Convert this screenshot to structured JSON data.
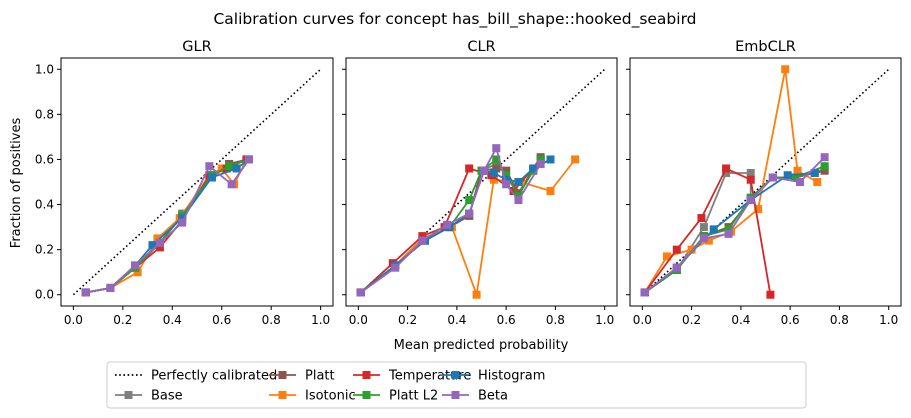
{
  "figure": {
    "suptitle": "Calibration curves for concept has_bill_shape::hooked_seabird",
    "shared_xlabel": "Mean predicted probability",
    "shared_ylabel": "Fraction of positives"
  },
  "legend": {
    "location": "bottom-center",
    "entries": [
      {
        "name": "Perfectly calibrated",
        "color": "#000000",
        "style": "dotted",
        "marker": "none"
      },
      {
        "name": "Base",
        "color": "#7f7f7f",
        "style": "solid",
        "marker": "square"
      },
      {
        "name": "Platt",
        "color": "#8c564b",
        "style": "solid",
        "marker": "square"
      },
      {
        "name": "Isotonic",
        "color": "#ff7f0e",
        "style": "solid",
        "marker": "square"
      },
      {
        "name": "Temperature",
        "color": "#d62728",
        "style": "solid",
        "marker": "square"
      },
      {
        "name": "Platt L2",
        "color": "#2ca02c",
        "style": "solid",
        "marker": "square"
      },
      {
        "name": "Histogram",
        "color": "#1f77b4",
        "style": "solid",
        "marker": "square"
      },
      {
        "name": "Beta",
        "color": "#9467bd",
        "style": "solid",
        "marker": "square"
      }
    ]
  },
  "chart_data": [
    {
      "type": "line",
      "title": "GLR",
      "xlabel": "",
      "ylabel": "Fraction of positives",
      "xlim": [
        -0.05,
        1.05
      ],
      "ylim": [
        -0.05,
        1.05
      ],
      "xticks": [
        "0.0",
        "0.2",
        "0.4",
        "0.6",
        "0.8",
        "1.0"
      ],
      "yticks": [
        "0.0",
        "0.2",
        "0.4",
        "0.6",
        "0.8",
        "1.0"
      ],
      "series": [
        {
          "name": "Perfectly calibrated",
          "points": [
            [
              0,
              0
            ],
            [
              1,
              1
            ]
          ]
        },
        {
          "name": "Base",
          "points": [
            [
              0.05,
              0.01
            ],
            [
              0.15,
              0.03
            ],
            [
              0.25,
              0.12
            ],
            [
              0.35,
              0.23
            ],
            [
              0.44,
              0.36
            ],
            [
              0.56,
              0.52
            ],
            [
              0.63,
              0.58
            ],
            [
              0.7,
              0.6
            ]
          ]
        },
        {
          "name": "Platt",
          "points": [
            [
              0.05,
              0.01
            ],
            [
              0.15,
              0.03
            ],
            [
              0.25,
              0.12
            ],
            [
              0.35,
              0.23
            ],
            [
              0.44,
              0.35
            ],
            [
              0.56,
              0.53
            ],
            [
              0.63,
              0.58
            ],
            [
              0.71,
              0.6
            ]
          ]
        },
        {
          "name": "Isotonic",
          "points": [
            [
              0.05,
              0.01
            ],
            [
              0.15,
              0.03
            ],
            [
              0.26,
              0.1
            ],
            [
              0.34,
              0.25
            ],
            [
              0.43,
              0.34
            ],
            [
              0.55,
              0.53
            ],
            [
              0.6,
              0.56
            ],
            [
              0.65,
              0.49
            ],
            [
              0.7,
              0.6
            ]
          ]
        },
        {
          "name": "Temperature",
          "points": [
            [
              0.05,
              0.01
            ],
            [
              0.15,
              0.03
            ],
            [
              0.25,
              0.12
            ],
            [
              0.35,
              0.21
            ],
            [
              0.44,
              0.33
            ],
            [
              0.55,
              0.53
            ],
            [
              0.62,
              0.56
            ],
            [
              0.7,
              0.6
            ]
          ]
        },
        {
          "name": "Platt L2",
          "points": [
            [
              0.05,
              0.01
            ],
            [
              0.15,
              0.03
            ],
            [
              0.25,
              0.12
            ],
            [
              0.35,
              0.23
            ],
            [
              0.44,
              0.35
            ],
            [
              0.56,
              0.53
            ],
            [
              0.63,
              0.57
            ],
            [
              0.71,
              0.6
            ]
          ]
        },
        {
          "name": "Histogram",
          "points": [
            [
              0.05,
              0.01
            ],
            [
              0.15,
              0.03
            ],
            [
              0.25,
              0.13
            ],
            [
              0.32,
              0.22
            ],
            [
              0.44,
              0.34
            ],
            [
              0.56,
              0.52
            ],
            [
              0.66,
              0.56
            ],
            [
              0.71,
              0.6
            ]
          ]
        },
        {
          "name": "Beta",
          "points": [
            [
              0.05,
              0.01
            ],
            [
              0.15,
              0.03
            ],
            [
              0.25,
              0.13
            ],
            [
              0.35,
              0.23
            ],
            [
              0.44,
              0.32
            ],
            [
              0.55,
              0.57
            ],
            [
              0.64,
              0.49
            ],
            [
              0.71,
              0.6
            ]
          ]
        }
      ]
    },
    {
      "type": "line",
      "title": "CLR",
      "xlabel": "Mean predicted probability",
      "ylabel": "",
      "xlim": [
        -0.05,
        1.05
      ],
      "ylim": [
        -0.05,
        1.05
      ],
      "xticks": [
        "0.0",
        "0.2",
        "0.4",
        "0.6",
        "0.8",
        "1.0"
      ],
      "yticks": [],
      "series": [
        {
          "name": "Perfectly calibrated",
          "points": [
            [
              0,
              0
            ],
            [
              1,
              1
            ]
          ]
        },
        {
          "name": "Base",
          "points": [
            [
              0.01,
              0.01
            ],
            [
              0.15,
              0.13
            ],
            [
              0.27,
              0.24
            ],
            [
              0.37,
              0.3
            ],
            [
              0.45,
              0.35
            ],
            [
              0.5,
              0.55
            ],
            [
              0.56,
              0.58
            ],
            [
              0.6,
              0.55
            ],
            [
              0.65,
              0.45
            ],
            [
              0.71,
              0.55
            ],
            [
              0.74,
              0.6
            ]
          ]
        },
        {
          "name": "Platt",
          "points": [
            [
              0.01,
              0.01
            ],
            [
              0.15,
              0.13
            ],
            [
              0.27,
              0.24
            ],
            [
              0.37,
              0.3
            ],
            [
              0.45,
              0.35
            ],
            [
              0.5,
              0.55
            ],
            [
              0.56,
              0.56
            ],
            [
              0.6,
              0.55
            ],
            [
              0.65,
              0.45
            ],
            [
              0.71,
              0.56
            ],
            [
              0.74,
              0.61
            ]
          ]
        },
        {
          "name": "Isotonic",
          "points": [
            [
              0.01,
              0.01
            ],
            [
              0.15,
              0.13
            ],
            [
              0.26,
              0.25
            ],
            [
              0.38,
              0.3
            ],
            [
              0.48,
              0.0
            ],
            [
              0.55,
              0.51
            ],
            [
              0.66,
              0.5
            ],
            [
              0.78,
              0.46
            ],
            [
              0.88,
              0.6
            ]
          ]
        },
        {
          "name": "Temperature",
          "points": [
            [
              0.01,
              0.01
            ],
            [
              0.14,
              0.14
            ],
            [
              0.26,
              0.26
            ],
            [
              0.35,
              0.3
            ],
            [
              0.45,
              0.56
            ],
            [
              0.54,
              0.53
            ],
            [
              0.63,
              0.46
            ],
            [
              0.74,
              0.6
            ]
          ]
        },
        {
          "name": "Platt L2",
          "points": [
            [
              0.01,
              0.01
            ],
            [
              0.15,
              0.13
            ],
            [
              0.27,
              0.24
            ],
            [
              0.37,
              0.3
            ],
            [
              0.45,
              0.42
            ],
            [
              0.5,
              0.55
            ],
            [
              0.56,
              0.6
            ],
            [
              0.6,
              0.53
            ],
            [
              0.65,
              0.44
            ],
            [
              0.71,
              0.55
            ],
            [
              0.74,
              0.6
            ]
          ]
        },
        {
          "name": "Histogram",
          "points": [
            [
              0.01,
              0.01
            ],
            [
              0.15,
              0.13
            ],
            [
              0.27,
              0.24
            ],
            [
              0.37,
              0.3
            ],
            [
              0.45,
              0.36
            ],
            [
              0.51,
              0.55
            ],
            [
              0.55,
              0.54
            ],
            [
              0.6,
              0.51
            ],
            [
              0.65,
              0.5
            ],
            [
              0.71,
              0.56
            ],
            [
              0.78,
              0.6
            ]
          ]
        },
        {
          "name": "Beta",
          "points": [
            [
              0.01,
              0.01
            ],
            [
              0.15,
              0.12
            ],
            [
              0.26,
              0.24
            ],
            [
              0.36,
              0.31
            ],
            [
              0.45,
              0.36
            ],
            [
              0.51,
              0.55
            ],
            [
              0.56,
              0.65
            ],
            [
              0.6,
              0.49
            ],
            [
              0.65,
              0.42
            ],
            [
              0.74,
              0.58
            ]
          ]
        }
      ]
    },
    {
      "type": "line",
      "title": "EmbCLR",
      "xlabel": "",
      "ylabel": "",
      "xlim": [
        -0.05,
        1.05
      ],
      "ylim": [
        -0.05,
        1.05
      ],
      "xticks": [
        "0.0",
        "0.2",
        "0.4",
        "0.6",
        "0.8",
        "1.0"
      ],
      "yticks": [],
      "series": [
        {
          "name": "Perfectly calibrated",
          "points": [
            [
              0,
              0
            ],
            [
              1,
              1
            ]
          ]
        },
        {
          "name": "Base",
          "points": [
            [
              0.01,
              0.01
            ],
            [
              0.14,
              0.11
            ],
            [
              0.25,
              0.3
            ],
            [
              0.34,
              0.54
            ],
            [
              0.44,
              0.54
            ],
            [
              0.44,
              0.43
            ],
            [
              0.53,
              0.52
            ],
            [
              0.62,
              0.52
            ],
            [
              0.7,
              0.54
            ],
            [
              0.74,
              0.56
            ]
          ]
        },
        {
          "name": "Platt",
          "points": [
            [
              0.01,
              0.01
            ],
            [
              0.14,
              0.11
            ],
            [
              0.25,
              0.26
            ],
            [
              0.35,
              0.3
            ],
            [
              0.44,
              0.42
            ],
            [
              0.53,
              0.52
            ],
            [
              0.62,
              0.52
            ],
            [
              0.74,
              0.55
            ]
          ]
        },
        {
          "name": "Isotonic",
          "points": [
            [
              0.01,
              0.01
            ],
            [
              0.1,
              0.17
            ],
            [
              0.2,
              0.2
            ],
            [
              0.27,
              0.24
            ],
            [
              0.36,
              0.28
            ],
            [
              0.47,
              0.38
            ],
            [
              0.58,
              1.0
            ],
            [
              0.63,
              0.55
            ],
            [
              0.71,
              0.5
            ]
          ]
        },
        {
          "name": "Temperature",
          "points": [
            [
              0.01,
              0.01
            ],
            [
              0.14,
              0.2
            ],
            [
              0.24,
              0.34
            ],
            [
              0.34,
              0.56
            ],
            [
              0.44,
              0.51
            ],
            [
              0.52,
              0.0
            ]
          ]
        },
        {
          "name": "Platt L2",
          "points": [
            [
              0.01,
              0.01
            ],
            [
              0.14,
              0.11
            ],
            [
              0.25,
              0.26
            ],
            [
              0.35,
              0.29
            ],
            [
              0.44,
              0.43
            ],
            [
              0.53,
              0.52
            ],
            [
              0.62,
              0.52
            ],
            [
              0.74,
              0.57
            ]
          ]
        },
        {
          "name": "Histogram",
          "points": [
            [
              0.01,
              0.01
            ],
            [
              0.14,
              0.12
            ],
            [
              0.29,
              0.29
            ],
            [
              0.44,
              0.42
            ],
            [
              0.59,
              0.53
            ],
            [
              0.7,
              0.54
            ]
          ]
        },
        {
          "name": "Beta",
          "points": [
            [
              0.01,
              0.01
            ],
            [
              0.14,
              0.12
            ],
            [
              0.25,
              0.25
            ],
            [
              0.35,
              0.27
            ],
            [
              0.44,
              0.42
            ],
            [
              0.53,
              0.52
            ],
            [
              0.64,
              0.5
            ],
            [
              0.74,
              0.61
            ]
          ]
        }
      ]
    }
  ]
}
